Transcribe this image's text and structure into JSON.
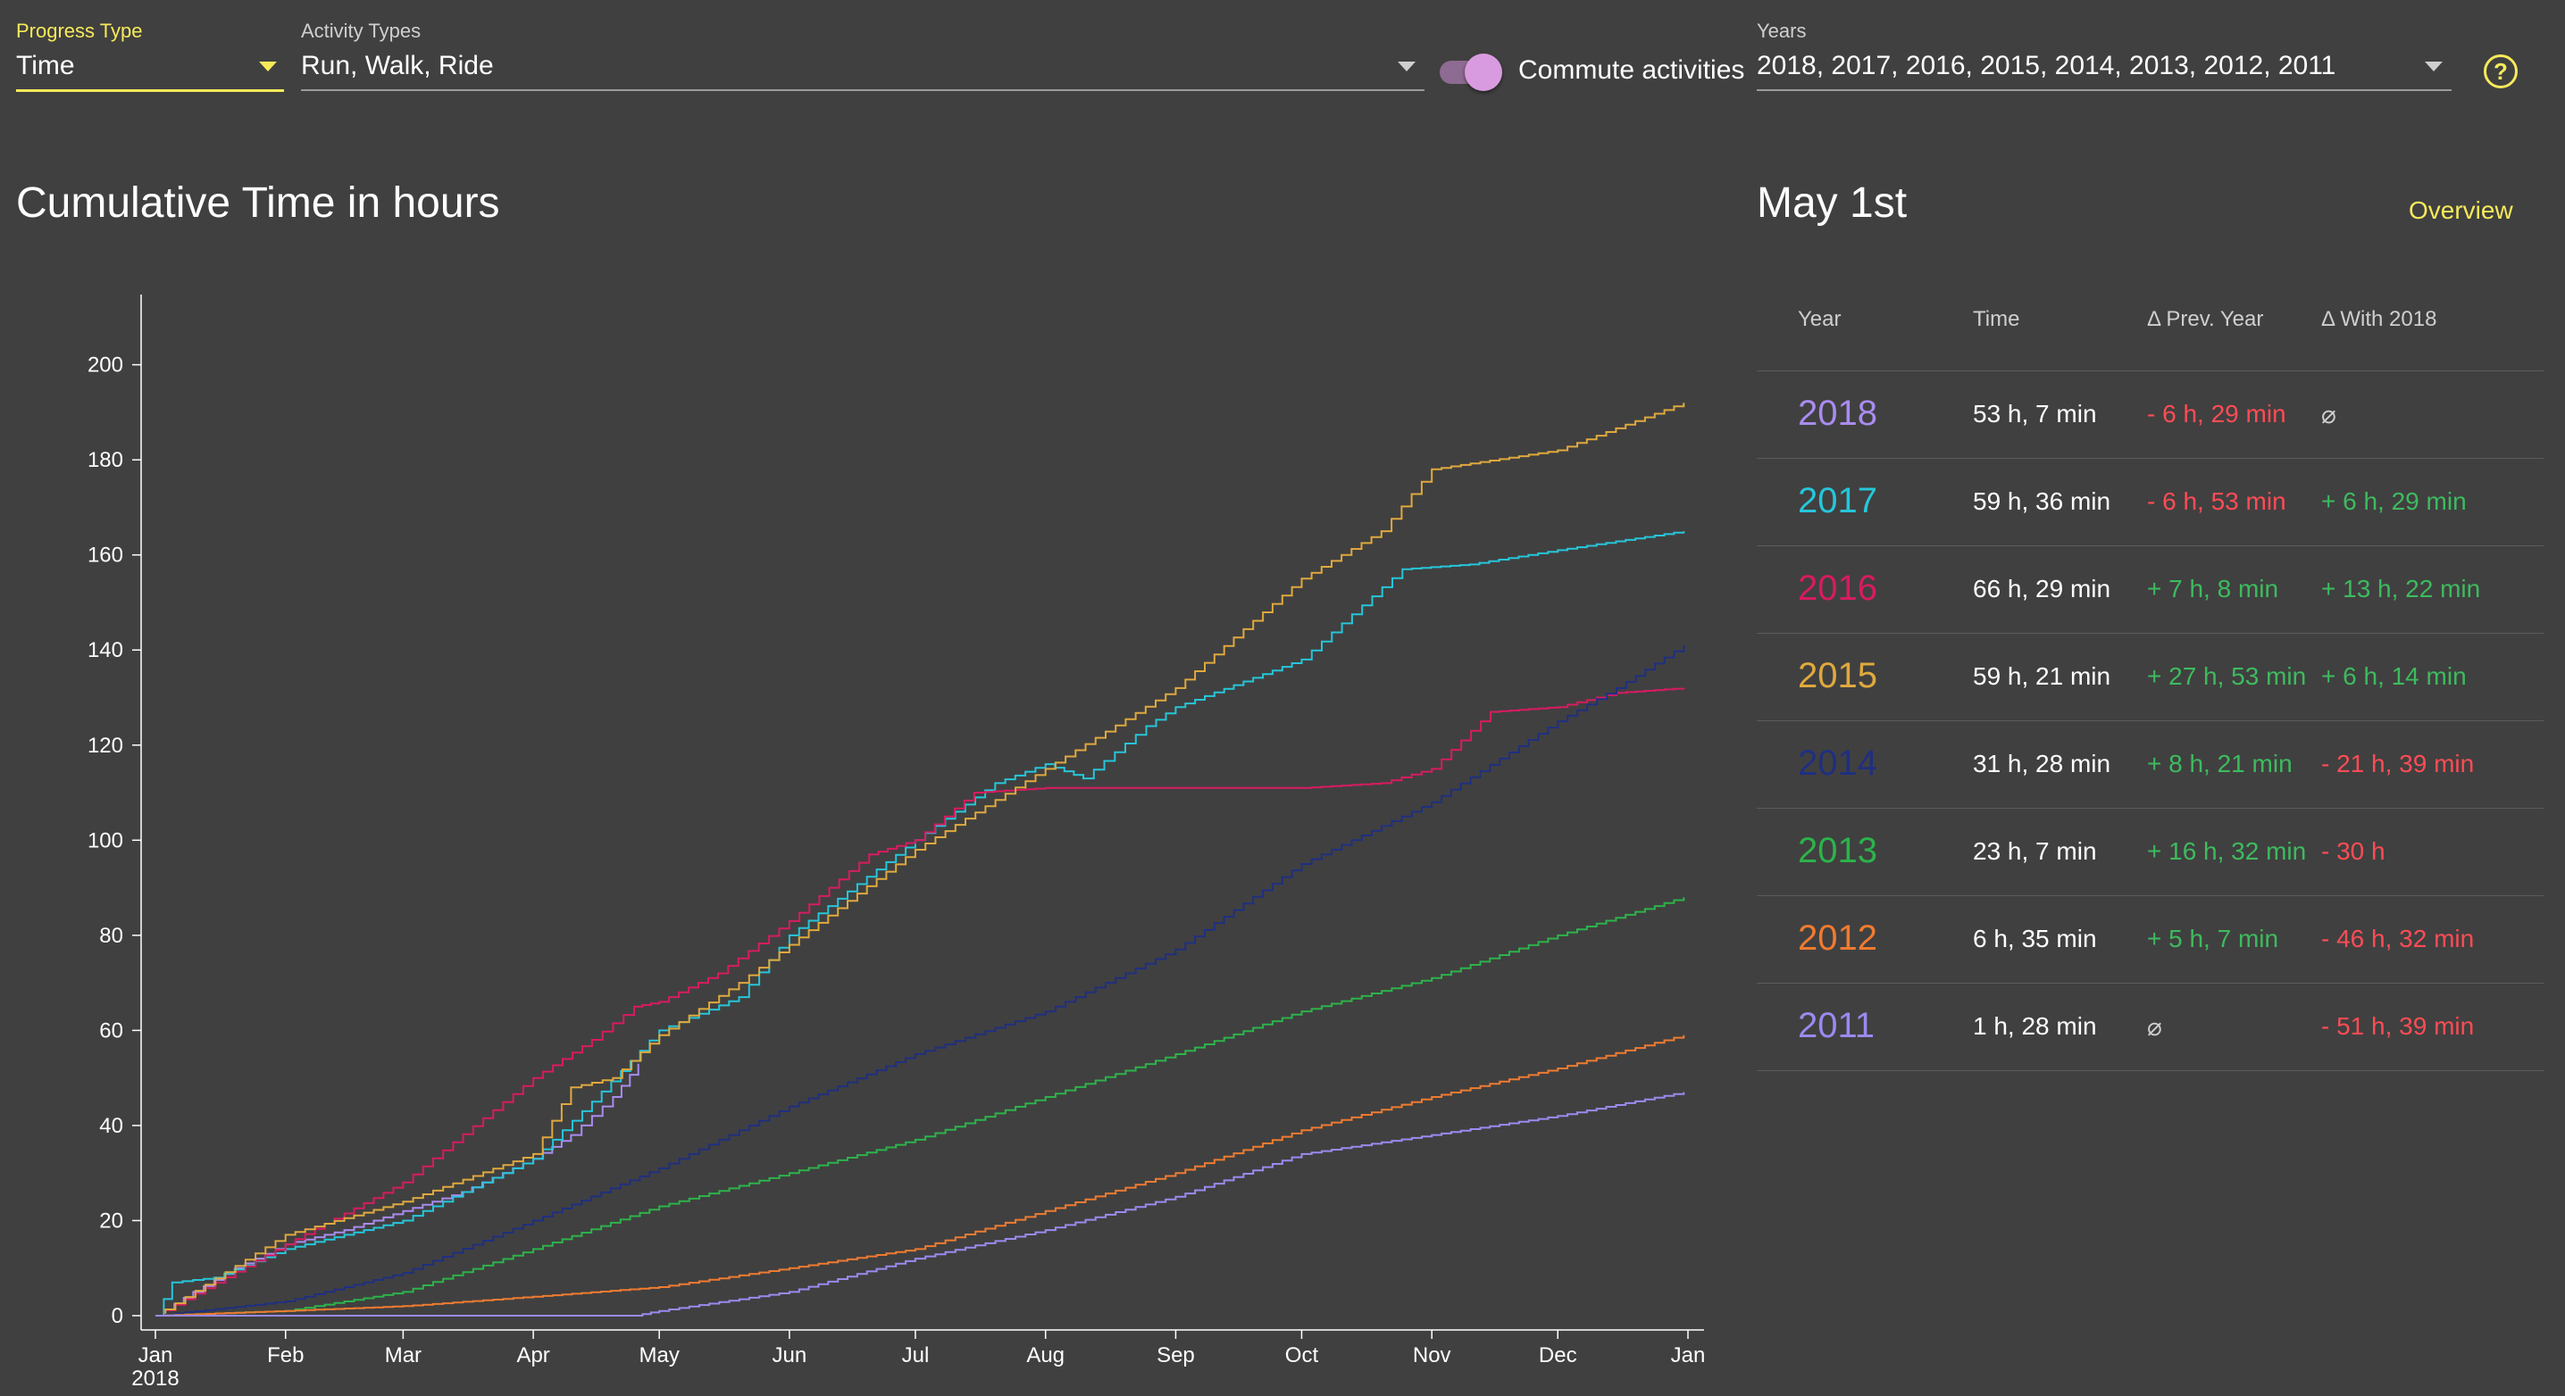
{
  "controls": {
    "progress_type": {
      "label": "Progress Type",
      "value": "Time"
    },
    "activity_types": {
      "label": "Activity Types",
      "value": "Run, Walk, Ride"
    },
    "commute": {
      "label": "Commute activities",
      "on": true
    },
    "years": {
      "label": "Years",
      "value": "2018, 2017, 2016, 2015, 2014, 2013, 2012, 2011"
    },
    "help_icon_text": "?"
  },
  "colors": {
    "accent": "#f7ea5a",
    "toggle_knob": "#d99be0",
    "positive": "#3dbb5e",
    "negative": "#ff4c55",
    "neutral": "#cfcfcf"
  },
  "summary": {
    "title": "May 1st",
    "overview_link": "Overview",
    "headers": [
      "Year",
      "Time",
      "Δ Prev. Year",
      "Δ With 2018"
    ],
    "rows": [
      {
        "year": "2018",
        "color": "#a98cf0",
        "time": "53 h, 7 min",
        "prev": "- 6 h, 29 min",
        "prev_kind": "negative",
        "with": "⌀",
        "with_kind": "neutral"
      },
      {
        "year": "2017",
        "color": "#26c6da",
        "time": "59 h, 36 min",
        "prev": "- 6 h, 53 min",
        "prev_kind": "negative",
        "with": "+ 6 h, 29 min",
        "with_kind": "positive"
      },
      {
        "year": "2016",
        "color": "#d81b60",
        "time": "66 h, 29 min",
        "prev": "+ 7 h, 8 min",
        "prev_kind": "positive",
        "with": "+ 13 h, 22 min",
        "with_kind": "positive"
      },
      {
        "year": "2015",
        "color": "#e0a93d",
        "time": "59 h, 21 min",
        "prev": "+ 27 h, 53 min",
        "prev_kind": "positive",
        "with": "+ 6 h, 14 min",
        "with_kind": "positive"
      },
      {
        "year": "2014",
        "color": "#1f2f80",
        "time": "31 h, 28 min",
        "prev": "+ 8 h, 21 min",
        "prev_kind": "positive",
        "with": "- 21 h, 39 min",
        "with_kind": "negative"
      },
      {
        "year": "2013",
        "color": "#2cb34a",
        "time": "23 h, 7 min",
        "prev": "+ 16 h, 32 min",
        "prev_kind": "positive",
        "with": "- 30 h",
        "with_kind": "negative"
      },
      {
        "year": "2012",
        "color": "#ef7b30",
        "time": "6 h, 35 min",
        "prev": "+ 5 h, 7 min",
        "prev_kind": "positive",
        "with": "- 46 h, 32 min",
        "with_kind": "negative"
      },
      {
        "year": "2011",
        "color": "#9a8af0",
        "time": "1 h, 28 min",
        "prev": "⌀",
        "prev_kind": "neutral",
        "with": "- 51 h, 39 min",
        "with_kind": "negative"
      }
    ]
  },
  "chart_data": {
    "type": "line",
    "title": "Cumulative Time in hours",
    "xlabel": "",
    "ylabel": "",
    "x_ticks": [
      "Jan",
      "Feb",
      "Mar",
      "Apr",
      "May",
      "Jun",
      "Jul",
      "Aug",
      "Sep",
      "Oct",
      "Nov",
      "Dec",
      "Jan"
    ],
    "x_year_label": "2018",
    "y_ticks": [
      0,
      20,
      40,
      60,
      80,
      100,
      120,
      140,
      160,
      180,
      200
    ],
    "ylim": [
      0,
      205
    ],
    "xlim": [
      "2018-01-01",
      "2019-01-01"
    ],
    "grid": false,
    "legend": "none",
    "series": [
      {
        "year": "2018",
        "color": "#a98cf0",
        "points": [
          [
            "2018-01-01",
            0
          ],
          [
            "2018-01-10",
            5
          ],
          [
            "2018-01-20",
            10
          ],
          [
            "2018-02-01",
            15
          ],
          [
            "2018-02-15",
            18
          ],
          [
            "2018-03-01",
            22
          ],
          [
            "2018-03-15",
            26
          ],
          [
            "2018-04-01",
            33
          ],
          [
            "2018-04-10",
            38
          ],
          [
            "2018-04-20",
            46
          ],
          [
            "2018-04-26",
            53
          ]
        ]
      },
      {
        "year": "2017",
        "color": "#26c6da",
        "points": [
          [
            "2018-01-01",
            0
          ],
          [
            "2018-01-05",
            7
          ],
          [
            "2018-01-15",
            8
          ],
          [
            "2018-02-01",
            14
          ],
          [
            "2018-03-01",
            20
          ],
          [
            "2018-04-01",
            33
          ],
          [
            "2018-04-15",
            45
          ],
          [
            "2018-05-01",
            60
          ],
          [
            "2018-05-20",
            67
          ],
          [
            "2018-06-01",
            80
          ],
          [
            "2018-07-01",
            100
          ],
          [
            "2018-07-20",
            112
          ],
          [
            "2018-08-01",
            116
          ],
          [
            "2018-08-10",
            113
          ],
          [
            "2018-08-25",
            124
          ],
          [
            "2018-09-01",
            128
          ],
          [
            "2018-10-01",
            138
          ],
          [
            "2018-10-25",
            157
          ],
          [
            "2018-11-10",
            158
          ],
          [
            "2018-12-01",
            161
          ],
          [
            "2018-12-31",
            165
          ]
        ]
      },
      {
        "year": "2016",
        "color": "#d81b60",
        "points": [
          [
            "2018-01-01",
            0
          ],
          [
            "2018-02-01",
            15
          ],
          [
            "2018-03-01",
            28
          ],
          [
            "2018-04-01",
            50
          ],
          [
            "2018-04-15",
            58
          ],
          [
            "2018-04-25",
            65
          ],
          [
            "2018-05-01",
            66
          ],
          [
            "2018-05-15",
            72
          ],
          [
            "2018-06-01",
            83
          ],
          [
            "2018-06-20",
            97
          ],
          [
            "2018-07-01",
            100
          ],
          [
            "2018-07-15",
            110
          ],
          [
            "2018-08-01",
            111
          ],
          [
            "2018-10-01",
            111
          ],
          [
            "2018-10-20",
            112
          ],
          [
            "2018-11-01",
            115
          ],
          [
            "2018-11-15",
            127
          ],
          [
            "2018-12-01",
            128
          ],
          [
            "2018-12-15",
            131
          ],
          [
            "2018-12-31",
            132
          ]
        ]
      },
      {
        "year": "2015",
        "color": "#e0a93d",
        "points": [
          [
            "2018-01-01",
            0
          ],
          [
            "2018-02-01",
            17
          ],
          [
            "2018-03-01",
            24
          ],
          [
            "2018-04-01",
            34
          ],
          [
            "2018-04-10",
            48
          ],
          [
            "2018-04-20",
            50
          ],
          [
            "2018-05-01",
            59
          ],
          [
            "2018-05-20",
            70
          ],
          [
            "2018-06-01",
            78
          ],
          [
            "2018-07-01",
            98
          ],
          [
            "2018-08-01",
            115
          ],
          [
            "2018-09-01",
            132
          ],
          [
            "2018-10-01",
            155
          ],
          [
            "2018-10-20",
            165
          ],
          [
            "2018-11-01",
            178
          ],
          [
            "2018-12-01",
            182
          ],
          [
            "2018-12-31",
            192
          ]
        ]
      },
      {
        "year": "2014",
        "color": "#1f2f80",
        "points": [
          [
            "2018-01-01",
            0
          ],
          [
            "2018-02-01",
            3
          ],
          [
            "2018-03-01",
            9
          ],
          [
            "2018-04-01",
            20
          ],
          [
            "2018-05-01",
            31
          ],
          [
            "2018-06-01",
            44
          ],
          [
            "2018-07-01",
            55
          ],
          [
            "2018-08-01",
            64
          ],
          [
            "2018-09-01",
            77
          ],
          [
            "2018-10-01",
            95
          ],
          [
            "2018-11-01",
            108
          ],
          [
            "2018-12-01",
            125
          ],
          [
            "2018-12-15",
            132
          ],
          [
            "2018-12-31",
            141
          ]
        ]
      },
      {
        "year": "2013",
        "color": "#2cb34a",
        "points": [
          [
            "2018-01-01",
            0
          ],
          [
            "2018-02-01",
            1
          ],
          [
            "2018-03-01",
            5
          ],
          [
            "2018-04-01",
            14
          ],
          [
            "2018-05-01",
            23
          ],
          [
            "2018-06-01",
            30
          ],
          [
            "2018-07-01",
            37
          ],
          [
            "2018-08-01",
            46
          ],
          [
            "2018-09-01",
            55
          ],
          [
            "2018-10-01",
            64
          ],
          [
            "2018-11-01",
            71
          ],
          [
            "2018-12-01",
            80
          ],
          [
            "2018-12-31",
            88
          ]
        ]
      },
      {
        "year": "2012",
        "color": "#ef7b30",
        "points": [
          [
            "2018-01-01",
            0
          ],
          [
            "2018-02-01",
            1
          ],
          [
            "2018-03-01",
            2
          ],
          [
            "2018-04-01",
            4
          ],
          [
            "2018-05-01",
            6
          ],
          [
            "2018-06-01",
            10
          ],
          [
            "2018-07-01",
            14
          ],
          [
            "2018-08-01",
            22
          ],
          [
            "2018-09-01",
            30
          ],
          [
            "2018-10-01",
            39
          ],
          [
            "2018-11-01",
            46
          ],
          [
            "2018-12-01",
            52
          ],
          [
            "2018-12-31",
            59
          ]
        ]
      },
      {
        "year": "2011",
        "color": "#9a8af0",
        "points": [
          [
            "2018-01-01",
            0
          ],
          [
            "2018-04-25",
            0
          ],
          [
            "2018-05-01",
            1
          ],
          [
            "2018-06-01",
            5
          ],
          [
            "2018-07-01",
            12
          ],
          [
            "2018-08-01",
            18
          ],
          [
            "2018-09-01",
            25
          ],
          [
            "2018-10-01",
            34
          ],
          [
            "2018-11-01",
            38
          ],
          [
            "2018-12-01",
            42
          ],
          [
            "2018-12-31",
            47
          ]
        ]
      }
    ]
  }
}
